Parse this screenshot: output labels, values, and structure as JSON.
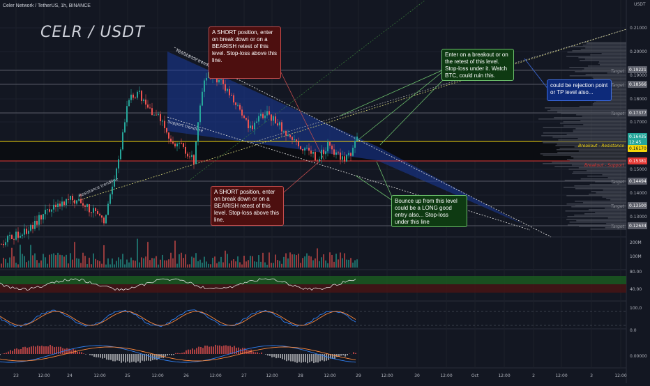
{
  "header": {
    "symbol_line": "Celer Network / TetherUS, 1h, BINANCE",
    "pair_title": "CELR  / USDT",
    "currency": "USDT"
  },
  "price_axis": {
    "labels": [
      "0.21000",
      "0.20000",
      "0.19000",
      "0.18000",
      "0.17000",
      "0.15000",
      "0.14000",
      "0.13000"
    ],
    "tags": [
      {
        "text": "0.19221",
        "color": "#5d606b"
      },
      {
        "text": "0.18566",
        "color": "#5d606b"
      },
      {
        "text": "0.17377",
        "color": "#5d606b"
      },
      {
        "text": "0.16435",
        "color": "#26a69a"
      },
      {
        "text": "12:45",
        "color": "#26a69a"
      },
      {
        "text": "0.16170",
        "color": "#f5d60a"
      },
      {
        "text": "0.15381",
        "color": "#e53935"
      },
      {
        "text": "0.14494",
        "color": "#5d606b"
      },
      {
        "text": "0.13500",
        "color": "#5d606b"
      },
      {
        "text": "0.12634",
        "color": "#5d606b"
      }
    ]
  },
  "level_labels": {
    "target": "Target",
    "breakout_resistance": "Breakout - Resistance",
    "breakout_support": "Breakout - Support"
  },
  "trendline_labels": {
    "resistance_top": "Resistance trendline",
    "support": "Support trendline",
    "resistance_low": "Resistance trendline"
  },
  "notes": {
    "short_top": "A SHORT position, enter on break down or on a BEARISH retest of this level. Stop-loss above this line.",
    "short_bottom": "A SHORT position, enter on break down or on a BEARISH retest of this level. Stop-loss above this line.",
    "long_breakout": "Enter on a breakout or on the retest of this level. Stop-loss under it. Watch BTC, could ruin this.",
    "bounce": "Bounce up from this level could be a LONG good entry also... Stop-loss under this line",
    "rejection": "could be rejection point or TP level also..."
  },
  "volume_axis": [
    "200M",
    "100M"
  ],
  "rsi_axis": [
    "80.00",
    "40.00"
  ],
  "stoch_axis": [
    "100.0",
    "0.0"
  ],
  "macd_axis": [
    "0.00000"
  ],
  "time_axis": [
    "23",
    "12:00",
    "24",
    "12:00",
    "25",
    "12:00",
    "26",
    "12:00",
    "27",
    "12:00",
    "28",
    "12:00",
    "29",
    "12:00",
    "30",
    "12:00",
    "Oct",
    "12:00",
    "2",
    "12:00",
    "3",
    "12:00"
  ],
  "colors": {
    "up": "#26a69a",
    "down": "#ef5350",
    "wedge": "#1a3a9c",
    "resistance_line": "#f5d60a",
    "support_line": "#e53935"
  }
}
